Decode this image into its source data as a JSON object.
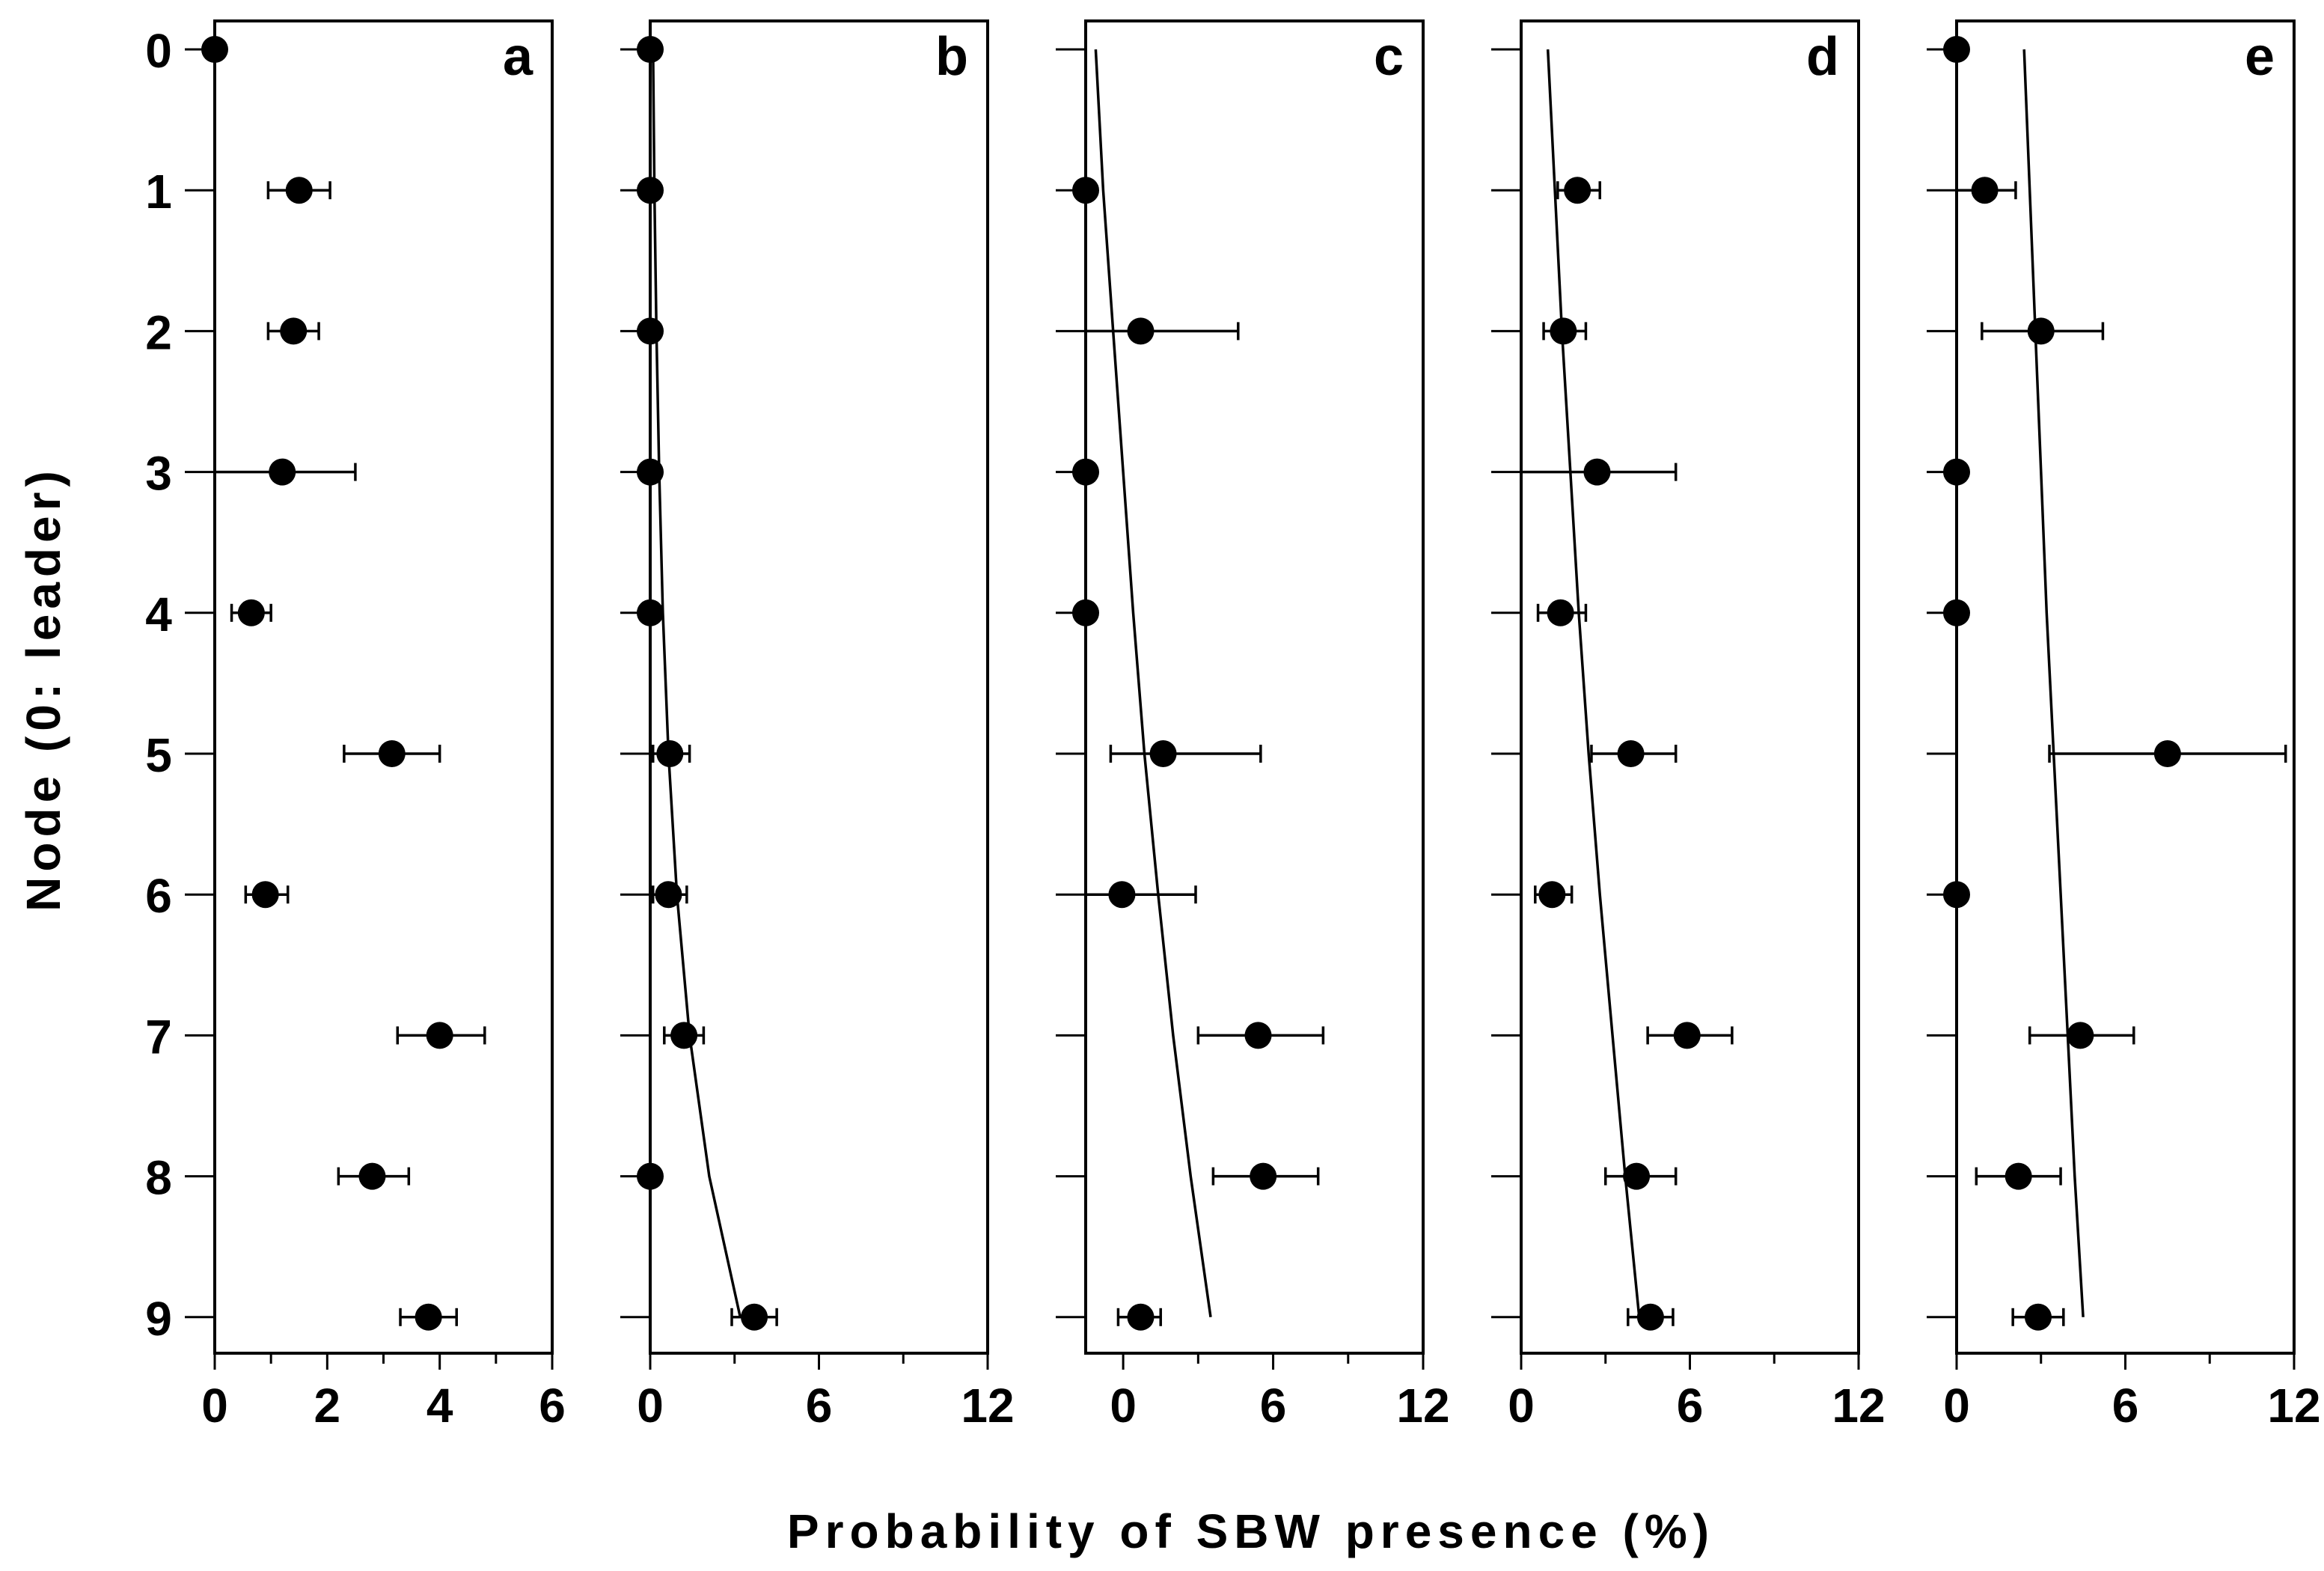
{
  "chart_data": {
    "type": "scatter",
    "ylabel": "Node (0: leader)",
    "xlabel": "Probability of SBW presence (%)",
    "nodes": [
      0,
      1,
      2,
      3,
      4,
      5,
      6,
      7,
      8,
      9
    ],
    "panels": [
      {
        "letter": "a",
        "xlim": [
          0,
          6
        ],
        "major_ticks": [
          0,
          2,
          4,
          6
        ],
        "tick_labels": [
          "0",
          "2",
          "4",
          "6"
        ],
        "minor_ticks": [
          1,
          3,
          5
        ],
        "points": [
          {
            "node": 0,
            "x": 0.0
          },
          {
            "node": 1,
            "x": 1.5,
            "lo": 0.95,
            "hi": 2.05
          },
          {
            "node": 2,
            "x": 1.4,
            "lo": 0.95,
            "hi": 1.85
          },
          {
            "node": 3,
            "x": 1.2,
            "lo": 0.0,
            "hi": 2.5
          },
          {
            "node": 4,
            "x": 0.65,
            "lo": 0.3,
            "hi": 1.0
          },
          {
            "node": 5,
            "x": 3.15,
            "lo": 2.3,
            "hi": 4.0
          },
          {
            "node": 6,
            "x": 0.9,
            "lo": 0.55,
            "hi": 1.3
          },
          {
            "node": 7,
            "x": 4.0,
            "lo": 3.25,
            "hi": 4.8
          },
          {
            "node": 8,
            "x": 2.8,
            "lo": 2.2,
            "hi": 3.45
          },
          {
            "node": 9,
            "x": 3.8,
            "lo": 3.3,
            "hi": 4.3
          }
        ],
        "fit": []
      },
      {
        "letter": "b",
        "xlim": [
          0,
          12
        ],
        "major_ticks": [
          0,
          6,
          12
        ],
        "tick_labels": [
          "0",
          "6",
          "12"
        ],
        "minor_ticks": [
          3,
          9
        ],
        "points": [
          {
            "node": 0,
            "x": 0.0
          },
          {
            "node": 1,
            "x": 0.0
          },
          {
            "node": 2,
            "x": 0.0
          },
          {
            "node": 3,
            "x": 0.0
          },
          {
            "node": 4,
            "x": 0.0
          },
          {
            "node": 5,
            "x": 0.7,
            "lo": 0.1,
            "hi": 1.4
          },
          {
            "node": 6,
            "x": 0.65,
            "lo": 0.1,
            "hi": 1.3
          },
          {
            "node": 7,
            "x": 1.2,
            "lo": 0.5,
            "hi": 1.9
          },
          {
            "node": 8,
            "x": 0.0
          },
          {
            "node": 9,
            "x": 3.7,
            "lo": 2.9,
            "hi": 4.5
          }
        ],
        "fit": [
          {
            "node": 0,
            "x": 0.1
          },
          {
            "node": 1,
            "x": 0.15
          },
          {
            "node": 2,
            "x": 0.22
          },
          {
            "node": 3,
            "x": 0.32
          },
          {
            "node": 4,
            "x": 0.45
          },
          {
            "node": 5,
            "x": 0.65
          },
          {
            "node": 6,
            "x": 0.95
          },
          {
            "node": 7,
            "x": 1.4
          },
          {
            "node": 8,
            "x": 2.1
          },
          {
            "node": 9,
            "x": 3.2
          }
        ]
      },
      {
        "letter": "c",
        "xlim": [
          -1.5,
          12
        ],
        "major_ticks": [
          0,
          6,
          12
        ],
        "tick_labels": [
          "0",
          "6",
          "12"
        ],
        "minor_ticks": [
          3,
          9
        ],
        "points": [
          {
            "node": 1,
            "x": -1.5
          },
          {
            "node": 2,
            "x": 0.7,
            "lo": -1.5,
            "hi": 4.6
          },
          {
            "node": 3,
            "x": -1.5
          },
          {
            "node": 4,
            "x": -1.5
          },
          {
            "node": 5,
            "x": 1.6,
            "lo": -0.5,
            "hi": 5.5
          },
          {
            "node": 6,
            "x": -0.05,
            "lo": -1.5,
            "hi": 2.9
          },
          {
            "node": 7,
            "x": 5.4,
            "lo": 3.0,
            "hi": 8.0
          },
          {
            "node": 8,
            "x": 5.6,
            "lo": 3.6,
            "hi": 7.8
          },
          {
            "node": 9,
            "x": 0.7,
            "lo": -0.2,
            "hi": 1.5
          }
        ],
        "fit": [
          {
            "node": 0,
            "x": -1.1
          },
          {
            "node": 1,
            "x": -0.8
          },
          {
            "node": 2,
            "x": -0.4
          },
          {
            "node": 3,
            "x": 0.0
          },
          {
            "node": 4,
            "x": 0.4
          },
          {
            "node": 5,
            "x": 0.85
          },
          {
            "node": 6,
            "x": 1.4
          },
          {
            "node": 7,
            "x": 2.0
          },
          {
            "node": 8,
            "x": 2.7
          },
          {
            "node": 9,
            "x": 3.5
          }
        ]
      },
      {
        "letter": "d",
        "xlim": [
          0,
          12
        ],
        "major_ticks": [
          0,
          6,
          12
        ],
        "tick_labels": [
          "0",
          "6",
          "12"
        ],
        "minor_ticks": [
          3,
          9
        ],
        "points": [
          {
            "node": 1,
            "x": 2.0,
            "lo": 1.3,
            "hi": 2.8
          },
          {
            "node": 2,
            "x": 1.5,
            "lo": 0.8,
            "hi": 2.3
          },
          {
            "node": 3,
            "x": 2.7,
            "lo": 0.0,
            "hi": 5.5
          },
          {
            "node": 4,
            "x": 1.4,
            "lo": 0.6,
            "hi": 2.3
          },
          {
            "node": 5,
            "x": 3.9,
            "lo": 2.5,
            "hi": 5.5
          },
          {
            "node": 6,
            "x": 1.1,
            "lo": 0.5,
            "hi": 1.8
          },
          {
            "node": 7,
            "x": 5.9,
            "lo": 4.5,
            "hi": 7.5
          },
          {
            "node": 8,
            "x": 4.1,
            "lo": 3.0,
            "hi": 5.5
          },
          {
            "node": 9,
            "x": 4.6,
            "lo": 3.8,
            "hi": 5.4
          }
        ],
        "fit": [
          {
            "node": 0,
            "x": 0.95
          },
          {
            "node": 1,
            "x": 1.2
          },
          {
            "node": 2,
            "x": 1.45
          },
          {
            "node": 3,
            "x": 1.75
          },
          {
            "node": 4,
            "x": 2.05
          },
          {
            "node": 5,
            "x": 2.4
          },
          {
            "node": 6,
            "x": 2.8
          },
          {
            "node": 7,
            "x": 3.25
          },
          {
            "node": 8,
            "x": 3.7
          },
          {
            "node": 9,
            "x": 4.2
          }
        ]
      },
      {
        "letter": "e",
        "xlim": [
          0,
          12
        ],
        "major_ticks": [
          0,
          6,
          12
        ],
        "tick_labels": [
          "0",
          "6",
          "12"
        ],
        "minor_ticks": [
          3,
          9
        ],
        "points": [
          {
            "node": 0,
            "x": 0.0
          },
          {
            "node": 1,
            "x": 1.0,
            "lo": 0.0,
            "hi": 2.1
          },
          {
            "node": 2,
            "x": 3.0,
            "lo": 0.9,
            "hi": 5.2
          },
          {
            "node": 3,
            "x": 0.0
          },
          {
            "node": 4,
            "x": 0.0
          },
          {
            "node": 5,
            "x": 7.5,
            "lo": 3.3,
            "hi": 11.7
          },
          {
            "node": 6,
            "x": 0.0
          },
          {
            "node": 7,
            "x": 4.4,
            "lo": 2.6,
            "hi": 6.3
          },
          {
            "node": 8,
            "x": 2.2,
            "lo": 0.7,
            "hi": 3.7
          },
          {
            "node": 9,
            "x": 2.9,
            "lo": 2.0,
            "hi": 3.8
          }
        ],
        "fit": [
          {
            "node": 0,
            "x": 2.4
          },
          {
            "node": 1,
            "x": 2.6
          },
          {
            "node": 2,
            "x": 2.8
          },
          {
            "node": 3,
            "x": 3.0
          },
          {
            "node": 4,
            "x": 3.2
          },
          {
            "node": 5,
            "x": 3.45
          },
          {
            "node": 6,
            "x": 3.7
          },
          {
            "node": 7,
            "x": 3.95
          },
          {
            "node": 8,
            "x": 4.2
          },
          {
            "node": 9,
            "x": 4.5
          }
        ]
      }
    ]
  }
}
